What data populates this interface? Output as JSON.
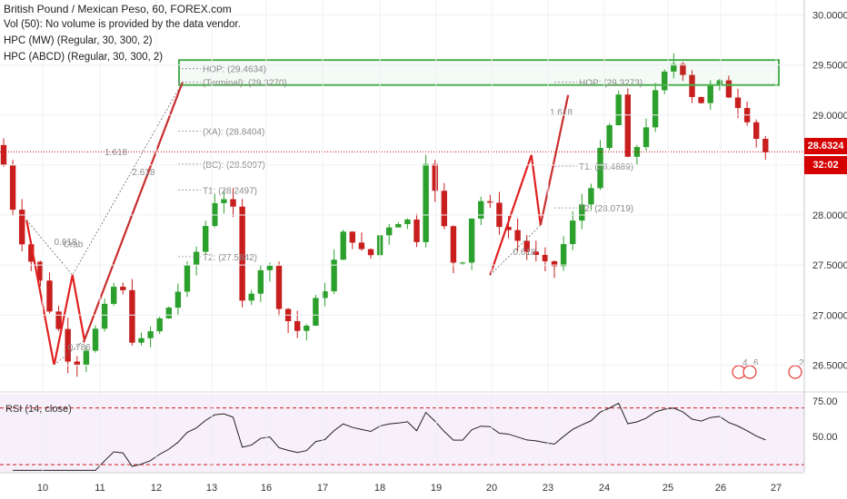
{
  "header": {
    "title": "British Pound / Mexican Peso, 60, FOREX.com",
    "vol": "Vol (50): No volume is provided by the data vendor.",
    "hpc_mw": "HPC (MW) (Regular, 30, 300, 2)",
    "hpc_abcd": "HPC (ABCD) (Regular, 30, 300, 2)"
  },
  "colors": {
    "up": "#2ca02c",
    "down": "#c81e1e",
    "pattern": "#e02020",
    "zone": "#4caf50",
    "price": "#d50000"
  },
  "price_badge": {
    "price": "28.6324",
    "countdown": "32:02"
  },
  "rsi_label": "RSI (14, close)",
  "chart_data": [
    {
      "type": "candlestick",
      "symbol": "GBPMXN",
      "timeframe": "60",
      "x": [
        "10",
        "11",
        "12",
        "13",
        "16",
        "17",
        "18",
        "19",
        "20",
        "23",
        "24",
        "25",
        "26",
        "27"
      ],
      "y_ticks": [
        "30.0000",
        "29.5000",
        "29.0000",
        "28.5000",
        "28.0000",
        "27.5000",
        "27.0000",
        "26.5000"
      ],
      "ylim": [
        26.25,
        30.15
      ],
      "last_price": 28.6324,
      "path": [
        [
          0,
          28.7
        ],
        [
          2,
          27.9
        ],
        [
          5,
          27.2
        ],
        [
          8,
          26.5
        ],
        [
          11,
          26.9
        ],
        [
          13,
          27.4
        ],
        [
          14.5,
          26.8
        ],
        [
          15.5,
          26.7
        ],
        [
          18,
          27.0
        ],
        [
          21,
          27.5
        ],
        [
          24,
          28.3
        ],
        [
          25.5,
          28.0
        ],
        [
          26.5,
          27.1
        ],
        [
          29,
          27.6
        ],
        [
          31,
          27.0
        ],
        [
          33,
          26.8
        ],
        [
          36,
          27.4
        ],
        [
          38,
          27.9
        ],
        [
          40,
          27.5
        ],
        [
          42,
          27.9
        ],
        [
          44,
          28.0
        ],
        [
          45.5,
          27.8
        ],
        [
          46.5,
          28.6
        ],
        [
          48,
          28.0
        ],
        [
          50,
          27.4
        ],
        [
          52,
          28.2
        ],
        [
          55,
          27.9
        ],
        [
          58,
          27.6
        ],
        [
          60,
          27.4
        ],
        [
          63,
          28.0
        ],
        [
          66,
          28.7
        ],
        [
          67.5,
          29.2
        ],
        [
          68.5,
          28.5
        ],
        [
          70,
          28.8
        ],
        [
          72,
          29.3
        ],
        [
          74,
          29.6
        ],
        [
          76,
          29.1
        ],
        [
          78,
          29.3
        ],
        [
          80,
          29.2
        ],
        [
          82,
          28.95
        ],
        [
          83,
          28.63
        ]
      ],
      "annotations": [
        {
          "text": "HOP: (29.4634)",
          "value": 29.4634
        },
        {
          "text": "(Terminal): (29.3270)",
          "value": 29.327
        },
        {
          "text": "(XA): (28.8404)",
          "value": 28.8404
        },
        {
          "text": "(BC): (28.5097)",
          "value": 28.5097
        },
        {
          "text": "T1: (28.2497)",
          "value": 28.2497
        },
        {
          "text": "T2: (27.5842)",
          "value": 27.5842
        },
        {
          "text": "HOP: (29.3273)",
          "value": 29.3273
        },
        {
          "text": "T1: (28.4889)",
          "value": 28.4889
        },
        {
          "text": "T2: (28.0719)",
          "value": 28.0719
        }
      ],
      "ratios": [
        "1.618",
        "2.618",
        "0.618",
        "0.786",
        "1.618",
        "0.618"
      ],
      "pattern_label": "Crab",
      "zone": [
        29.3,
        29.55
      ],
      "event_badges": [
        "4",
        "6",
        "2"
      ]
    },
    {
      "type": "line",
      "name": "RSI (14, close)",
      "y_ticks": [
        "75.00",
        "50.00"
      ],
      "levels": [
        70,
        30
      ],
      "ylim": [
        25,
        80
      ]
    }
  ]
}
